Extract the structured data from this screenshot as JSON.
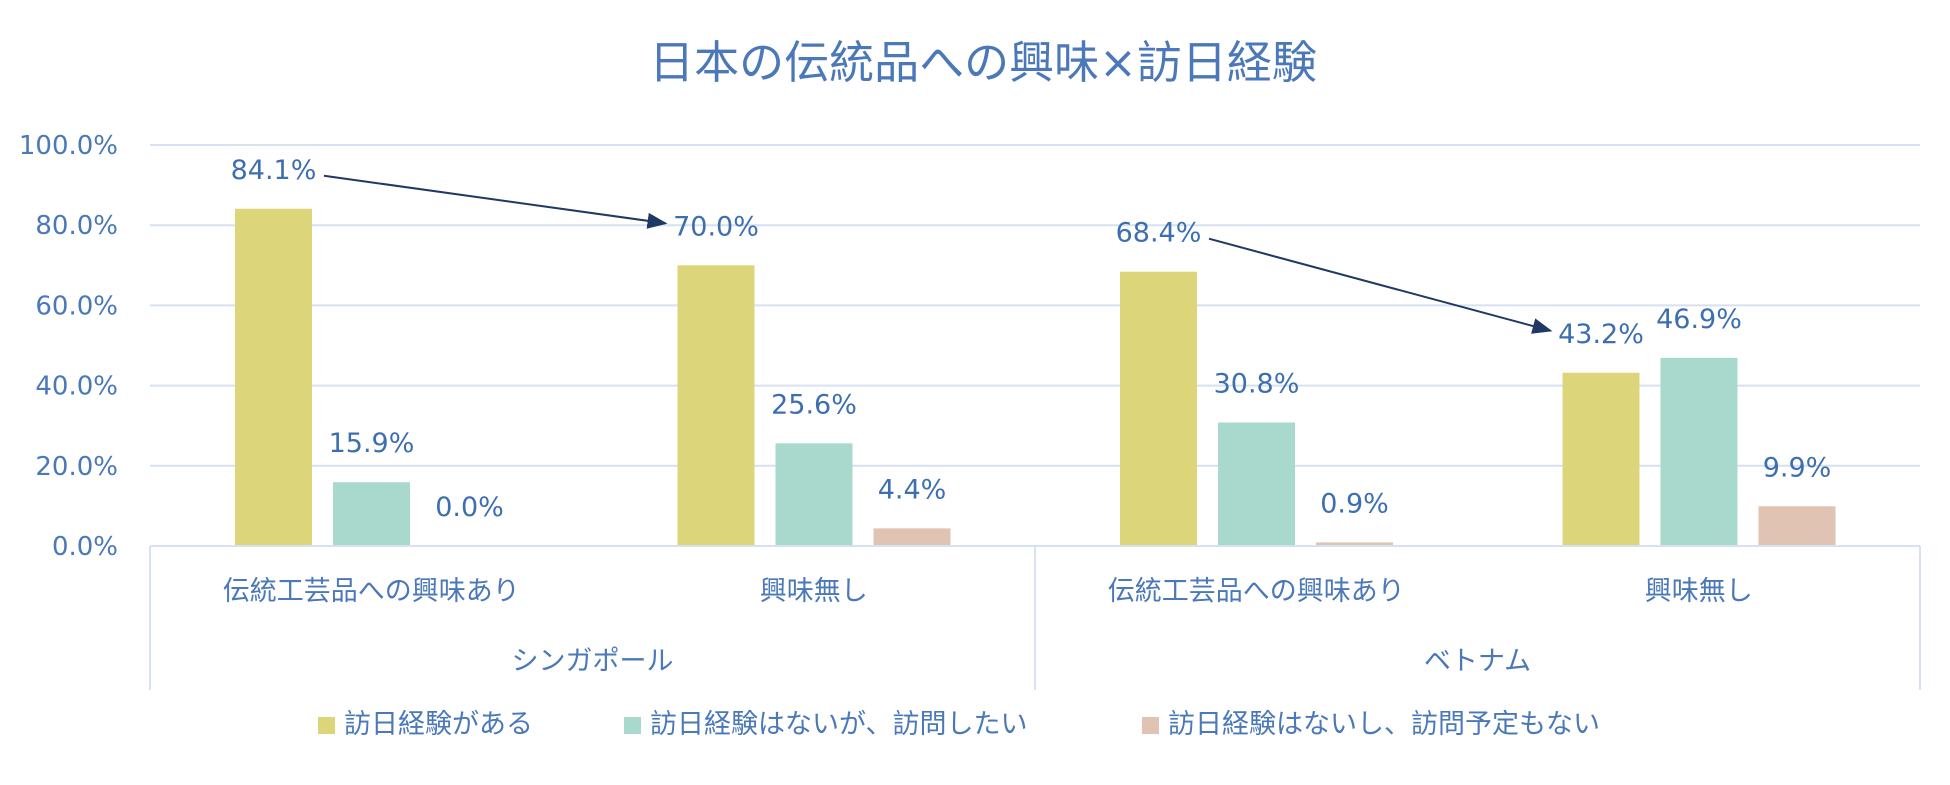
{
  "chart_data": {
    "type": "bar",
    "title": "日本の伝統品への興味×訪日経験",
    "ylim": [
      0,
      100
    ],
    "yticks": [
      "0.0%",
      "20.0%",
      "40.0%",
      "60.0%",
      "80.0%",
      "100.0%"
    ],
    "groups": [
      {
        "name": "シンガポール",
        "categories": [
          {
            "label": "伝統工芸品への興味あり",
            "values": [
              84.1,
              15.9,
              0.0
            ],
            "labels": [
              "84.1%",
              "15.9%",
              "0.0%"
            ]
          },
          {
            "label": "興味無し",
            "values": [
              70.0,
              25.6,
              4.4
            ],
            "labels": [
              "70.0%",
              "25.6%",
              "4.4%"
            ]
          }
        ]
      },
      {
        "name": "ベトナム",
        "categories": [
          {
            "label": "伝統工芸品への興味あり",
            "values": [
              68.4,
              30.8,
              0.9
            ],
            "labels": [
              "68.4%",
              "30.8%",
              "0.9%"
            ]
          },
          {
            "label": "興味無し",
            "values": [
              43.2,
              46.9,
              9.9
            ],
            "labels": [
              "43.2%",
              "46.9%",
              "9.9%"
            ]
          }
        ]
      }
    ],
    "series": [
      {
        "name": "訪日経験がある",
        "color": "#ddd57a"
      },
      {
        "name": "訪日経験はないが、訪問したい",
        "color": "#a8d9cc"
      },
      {
        "name": "訪日経験はないし、訪問予定もない",
        "color": "#e0c3b3"
      }
    ],
    "legend_position": "bottom",
    "grid": true,
    "annotations": [
      {
        "type": "arrow",
        "from": "シンガポール / 伝統工芸品への興味あり / 訪日経験がある",
        "to": "シンガポール / 興味無し / 訪日経験がある"
      },
      {
        "type": "arrow",
        "from": "ベトナム / 伝統工芸品への興味あり / 訪日経験がある",
        "to": "ベトナム / 興味無し / 訪日経験がある"
      }
    ],
    "arrow_color": "#1f3864"
  }
}
